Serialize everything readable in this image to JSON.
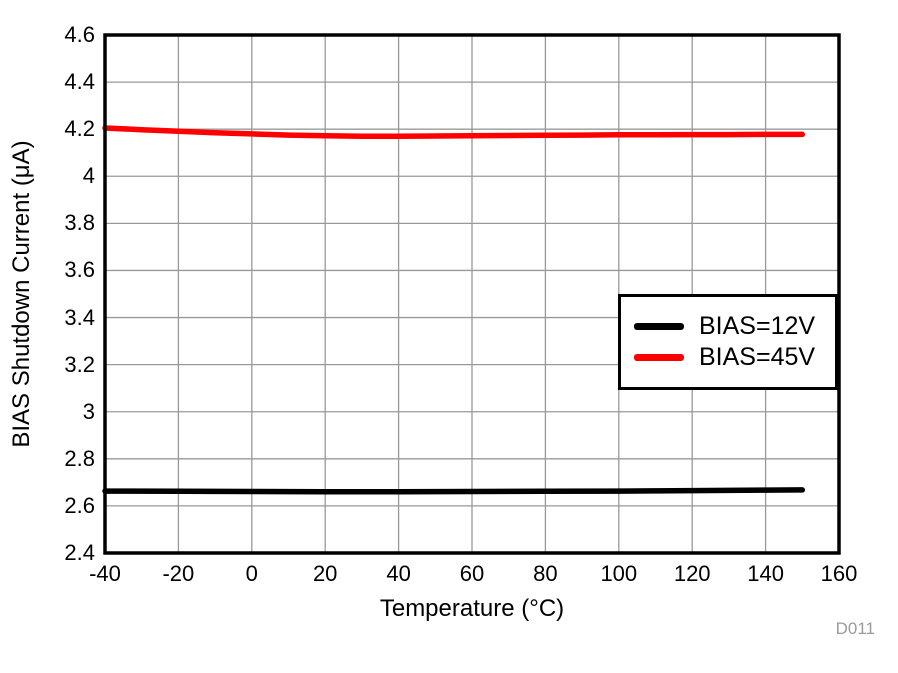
{
  "chart_data": {
    "type": "line",
    "title": "",
    "xlabel": "Temperature (°C)",
    "ylabel": "BIAS Shutdown Current (μA)",
    "xlim": [
      -40,
      160
    ],
    "ylim": [
      2.4,
      4.6
    ],
    "xticks": [
      -40,
      -20,
      0,
      20,
      40,
      60,
      80,
      100,
      120,
      140,
      160
    ],
    "yticks": [
      2.4,
      2.6,
      2.8,
      3,
      3.2,
      3.4,
      3.6,
      3.8,
      4,
      4.2,
      4.4,
      4.6
    ],
    "grid": true,
    "grid_color": "#999999",
    "frame_color": "#000000",
    "legend_position": "inside-middle-right",
    "series": [
      {
        "name": "BIAS=12V",
        "color": "#000000",
        "x": [
          -40,
          -20,
          0,
          20,
          40,
          60,
          80,
          100,
          120,
          140,
          150
        ],
        "y": [
          2.663,
          2.662,
          2.661,
          2.66,
          2.66,
          2.661,
          2.662,
          2.663,
          2.665,
          2.667,
          2.668
        ]
      },
      {
        "name": "BIAS=45V",
        "color": "#ff0000",
        "x": [
          -40,
          -30,
          -20,
          -10,
          0,
          10,
          20,
          30,
          40,
          50,
          60,
          70,
          80,
          90,
          100,
          110,
          120,
          130,
          140,
          150
        ],
        "y": [
          4.205,
          4.198,
          4.191,
          4.185,
          4.18,
          4.175,
          4.172,
          4.17,
          4.17,
          4.171,
          4.172,
          4.173,
          4.174,
          4.175,
          4.176,
          4.176,
          4.177,
          4.177,
          4.178,
          4.178
        ]
      }
    ],
    "watermark": "D011"
  }
}
